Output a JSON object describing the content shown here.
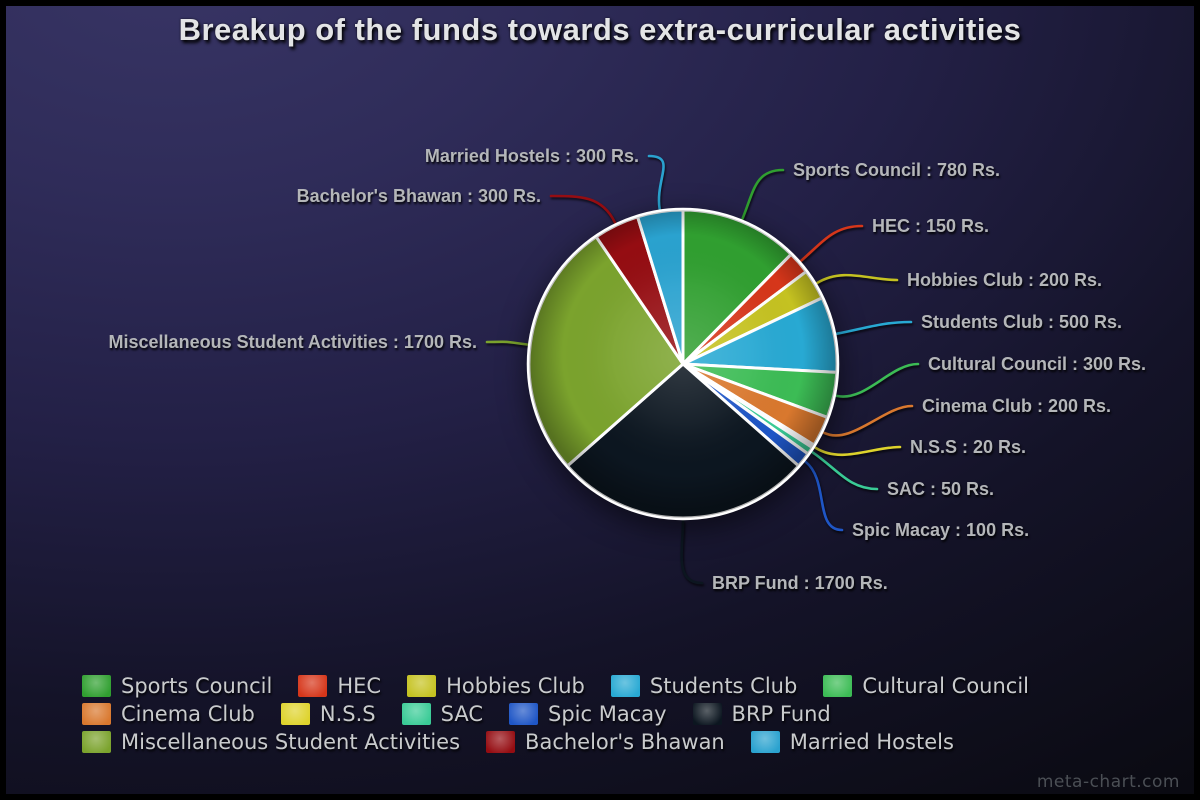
{
  "title": "Breakup of the funds towards extra-curricular activities",
  "watermark": "meta-chart.com",
  "chart_data": {
    "type": "pie",
    "title": "Breakup of the funds towards extra-curricular activities",
    "unit_suffix": "Rs.",
    "label_separator": " : ",
    "total": 6300,
    "start_angle_deg": 0,
    "direction": "clockwise",
    "legend_position": "bottom",
    "slices": [
      {
        "name": "Sports Council",
        "value": 780,
        "color": "#309f30",
        "callout": "Sports Council : 780 Rs."
      },
      {
        "name": "HEC",
        "value": 150,
        "color": "#d6361a",
        "callout": "HEC : 150 Rs."
      },
      {
        "name": "Hobbies Club",
        "value": 200,
        "color": "#c5c221",
        "callout": "Hobbies Club : 200 Rs."
      },
      {
        "name": "Students Club",
        "value": 500,
        "color": "#28a9d3",
        "callout": "Students Club : 500 Rs."
      },
      {
        "name": "Cultural Council",
        "value": 300,
        "color": "#3cbc55",
        "callout": "Cultural Council : 300 Rs."
      },
      {
        "name": "Cinema Club",
        "value": 200,
        "color": "#d9782e",
        "callout": "Cinema Club : 200 Rs."
      },
      {
        "name": "N.S.S",
        "value": 20,
        "color": "#ded32c",
        "callout": "N.S.S : 20 Rs."
      },
      {
        "name": "SAC",
        "value": 50,
        "color": "#3acb96",
        "callout": "SAC : 50 Rs."
      },
      {
        "name": "Spic Macay",
        "value": 100,
        "color": "#1f56c6",
        "callout": "Spic Macay : 100 Rs."
      },
      {
        "name": "BRP Fund",
        "value": 1700,
        "color": "#0c1620",
        "callout": "BRP Fund : 1700 Rs."
      },
      {
        "name": "Miscellaneous Student Activities",
        "value": 1700,
        "color": "#7ba32d",
        "callout": "Miscellaneous Student Activities : 1700 Rs."
      },
      {
        "name": "Bachelor's Bhawan",
        "value": 300,
        "color": "#950d12",
        "callout": "Bachelor's Bhawan : 300 Rs."
      },
      {
        "name": "Married Hostels",
        "value": 300,
        "color": "#2aa2cf",
        "callout": "Married Hostels : 300 Rs."
      }
    ]
  }
}
